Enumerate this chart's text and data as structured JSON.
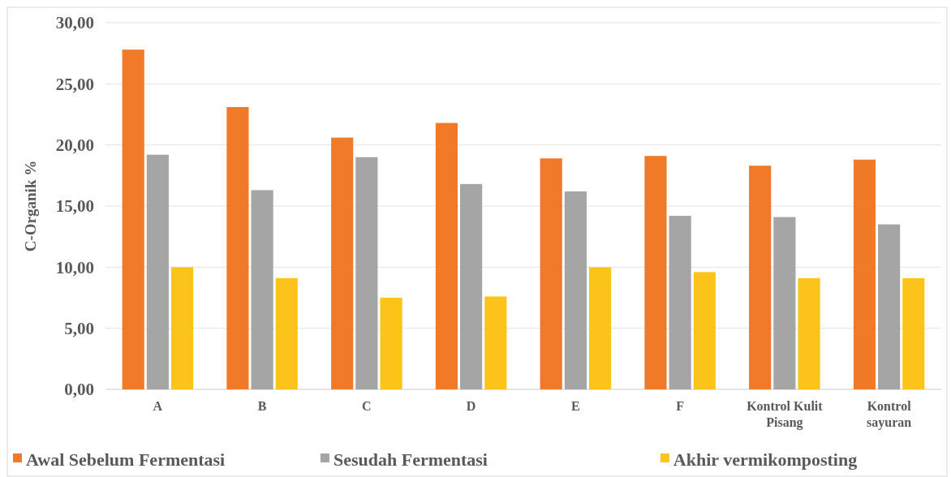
{
  "chart_data": {
    "type": "bar",
    "ylabel": "C-Organik %",
    "categories": [
      "A",
      "B",
      "C",
      "D",
      "E",
      "F",
      "Kontrol Kulit Pisang",
      "Kontrol sayuran"
    ],
    "series": [
      {
        "name": "Awal Sebelum Fermentasi",
        "color": "#f07a28",
        "values": [
          27.8,
          23.1,
          20.6,
          21.8,
          18.9,
          19.1,
          18.3,
          18.8
        ]
      },
      {
        "name": "Sesudah Fermentasi",
        "color": "#a5a5a5",
        "values": [
          19.2,
          16.3,
          19.0,
          16.8,
          16.2,
          14.2,
          14.1,
          13.5
        ]
      },
      {
        "name": "Akhir vermikomposting",
        "color": "#fcc418",
        "values": [
          10.0,
          9.1,
          7.5,
          7.6,
          10.0,
          9.6,
          9.1,
          9.1
        ]
      }
    ],
    "ylim": [
      0,
      30
    ],
    "yticks": [
      {
        "value": 0,
        "label": "0,00"
      },
      {
        "value": 5,
        "label": "5,00"
      },
      {
        "value": 10,
        "label": "10,00"
      },
      {
        "value": 15,
        "label": "15,00"
      },
      {
        "value": 20,
        "label": "20,00"
      },
      {
        "value": 25,
        "label": "25,00"
      },
      {
        "value": 30,
        "label": "30,00"
      }
    ],
    "grid": "y",
    "legend": "bottom"
  }
}
